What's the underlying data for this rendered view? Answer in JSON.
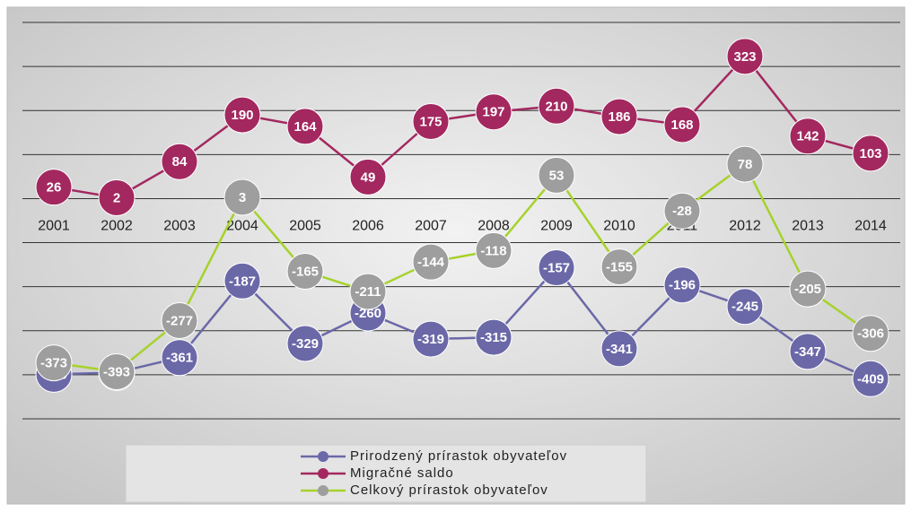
{
  "chart_data": {
    "type": "line",
    "categories": [
      "2001",
      "2002",
      "2003",
      "2004",
      "2005",
      "2006",
      "2007",
      "2008",
      "2009",
      "2010",
      "2011",
      "2012",
      "2013",
      "2014"
    ],
    "series": [
      {
        "name": "Prirodzený prírastok obyvateľov",
        "color": "#6b68a8",
        "line_color": "#6b68a8",
        "values": [
          -399,
          -395,
          -361,
          -187,
          -329,
          -260,
          -319,
          -315,
          -157,
          -341,
          -196,
          -245,
          -347,
          -409
        ]
      },
      {
        "name": "Migračné saldo",
        "color": "#a3285f",
        "line_color": "#a3285f",
        "values": [
          26,
          2,
          84,
          190,
          164,
          49,
          175,
          197,
          210,
          186,
          168,
          323,
          142,
          103
        ]
      },
      {
        "name": "Celkový prírastok obyvateľov",
        "color": "#9e9e9e",
        "line_color": "#a6d22c",
        "values": [
          -373,
          -393,
          -277,
          3,
          -165,
          -211,
          -144,
          -118,
          53,
          -155,
          -28,
          78,
          -205,
          -306
        ]
      }
    ],
    "ylim": [
      -500,
      400
    ],
    "yticks": [
      -500,
      -400,
      -300,
      -200,
      -100,
      0,
      100,
      200,
      300,
      400
    ],
    "grid": true
  }
}
